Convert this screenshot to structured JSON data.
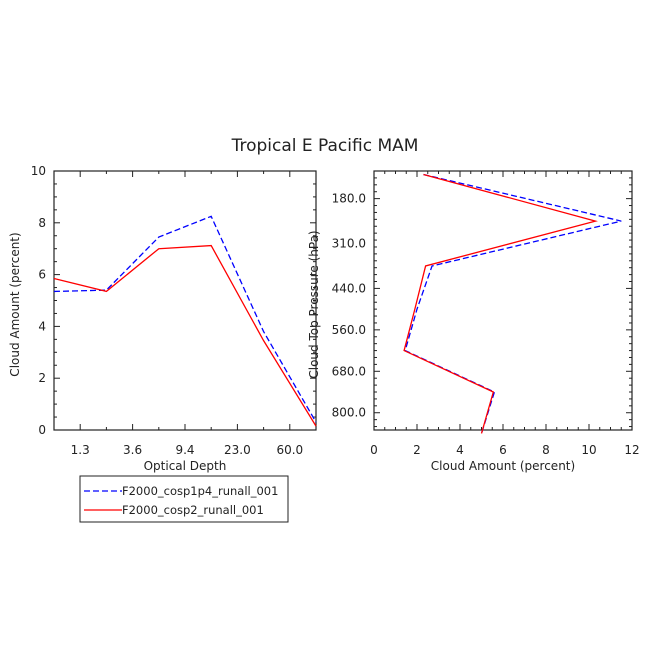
{
  "page_title": "Tropical E Pacific MAM",
  "legend": [
    {
      "label": "F2000_cosp1p4_runall_001",
      "color": "#0000ff",
      "dash": true
    },
    {
      "label": "F2000_cosp2_runall_001",
      "color": "#ff0000",
      "dash": false
    }
  ],
  "chart_data": [
    {
      "type": "line",
      "title": "",
      "xlabel": "Optical Depth",
      "ylabel": "Cloud Amount (percent)",
      "x_categories": [
        "",
        "1.3",
        "",
        "3.6",
        "",
        "9.4",
        "",
        "23.0",
        "",
        "60.0",
        ""
      ],
      "x_tick_labels": [
        "1.3",
        "3.6",
        "9.4",
        "23.0",
        "60.0"
      ],
      "ylim": [
        0,
        10
      ],
      "y_ticks": [
        "0",
        "2",
        "4",
        "6",
        "8",
        "10"
      ],
      "series": [
        {
          "name": "F2000_cosp1p4_runall_001",
          "color": "#0000ff",
          "dash": true,
          "x": [
            0,
            2,
            4,
            6,
            8,
            10
          ],
          "values": [
            5.35,
            5.4,
            7.45,
            8.25,
            3.8,
            0.3
          ]
        },
        {
          "name": "F2000_cosp2_runall_001",
          "color": "#ff0000",
          "dash": false,
          "x": [
            0,
            2,
            4,
            6,
            8,
            10
          ],
          "values": [
            5.85,
            5.35,
            7.0,
            7.12,
            3.45,
            0.15
          ]
        }
      ]
    },
    {
      "type": "line",
      "title": "",
      "xlabel": "Cloud Amount (percent)",
      "ylabel": "Cloud Top Pressure (hPa)",
      "xlim": [
        0,
        12
      ],
      "x_ticks": [
        "0",
        "2",
        "4",
        "6",
        "8",
        "10",
        "12"
      ],
      "y_ticks": [
        "180.0",
        "310.0",
        "440.0",
        "560.0",
        "680.0",
        "800.0"
      ],
      "y_reversed": true,
      "series": [
        {
          "name": "F2000_cosp1p4_runall_001",
          "color": "#0000ff",
          "dash": true,
          "pressure": [
            110,
            245,
            375,
            500,
            620,
            740,
            860
          ],
          "values": [
            2.3,
            11.5,
            2.7,
            2.0,
            1.45,
            5.6,
            5.0
          ]
        },
        {
          "name": "F2000_cosp2_runall_001",
          "color": "#ff0000",
          "dash": false,
          "pressure": [
            110,
            245,
            375,
            500,
            620,
            740,
            860
          ],
          "values": [
            2.3,
            10.3,
            2.4,
            1.9,
            1.4,
            5.55,
            5.0
          ]
        }
      ]
    }
  ]
}
